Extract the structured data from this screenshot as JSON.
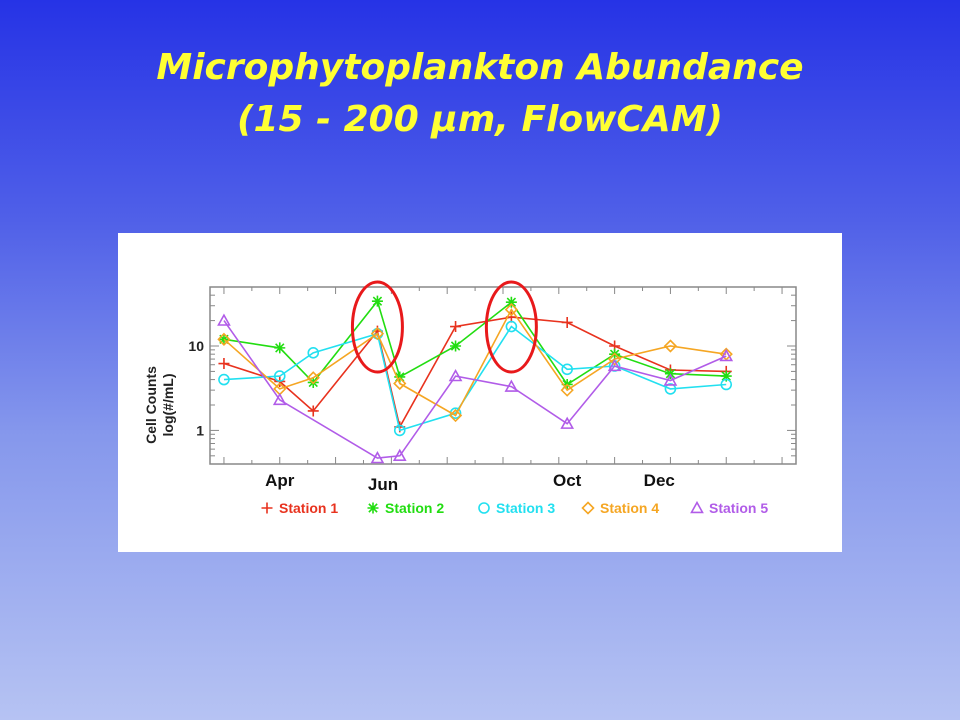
{
  "slide": {
    "title_line1": "Microphytoplankton Abundance",
    "title_line2": "(15 - 200 µm, FlowCAM)",
    "title_color": "#ffff33",
    "background_top": "#2633e6",
    "background_bottom": "#b6c3f3"
  },
  "chart_data": {
    "type": "line",
    "ylabel_line1": "Cell Counts",
    "ylabel_line2": "log(#/mL)",
    "yscale": "log",
    "ylim": [
      0.4,
      50
    ],
    "yticks": [
      {
        "value": 1,
        "label": "1"
      },
      {
        "value": 10,
        "label": "10"
      }
    ],
    "xlim": [
      0.5,
      21.5
    ],
    "month_labels": [
      {
        "label": "Apr",
        "x": 3.0
      },
      {
        "label": "Jun",
        "x": 6.7
      },
      {
        "label": "Oct",
        "x": 13.3
      },
      {
        "label": "Dec",
        "x": 16.6
      }
    ],
    "highlight_x": [
      6.5,
      11.3
    ],
    "highlight_color": "#e8191b",
    "series": [
      {
        "name": "Station 1",
        "color": "#e8321e",
        "marker": "plus",
        "x": [
          1,
          3,
          4.2,
          6.5,
          7.3,
          9.3,
          11.3,
          13.3,
          15,
          17,
          19
        ],
        "y": [
          6.2,
          3.8,
          1.7,
          15,
          1.1,
          17,
          22,
          19,
          10,
          5.2,
          5.0
        ]
      },
      {
        "name": "Station 2",
        "color": "#22dd11",
        "marker": "asterisk",
        "x": [
          1,
          3,
          4.2,
          6.5,
          7.3,
          9.3,
          11.3,
          13.3,
          15,
          17,
          19
        ],
        "y": [
          12,
          9.5,
          3.7,
          34,
          4.3,
          10,
          33,
          3.5,
          8.0,
          4.7,
          4.4
        ]
      },
      {
        "name": "Station 3",
        "color": "#22e0f0",
        "marker": "circle",
        "x": [
          1,
          3,
          4.2,
          6.5,
          7.3,
          9.3,
          11.3,
          13.3,
          15,
          17,
          19
        ],
        "y": [
          4.0,
          4.4,
          8.3,
          14,
          1.0,
          1.6,
          17,
          5.3,
          5.8,
          3.1,
          3.5
        ]
      },
      {
        "name": "Station 4",
        "color": "#f5a623",
        "marker": "diamond",
        "x": [
          1,
          3,
          4.2,
          6.5,
          7.3,
          9.3,
          11.3,
          13.3,
          15,
          17,
          19
        ],
        "y": [
          12,
          3.1,
          4.2,
          14,
          3.6,
          1.5,
          27,
          3.0,
          7.0,
          10,
          8.0
        ]
      },
      {
        "name": "Station 5",
        "color": "#b15ce8",
        "marker": "triangle",
        "x": [
          1,
          3,
          6.5,
          7.3,
          9.3,
          11.3,
          13.3,
          15,
          17,
          19
        ],
        "y": [
          20,
          2.3,
          0.47,
          0.5,
          4.4,
          3.3,
          1.2,
          5.8,
          3.9,
          7.6
        ]
      }
    ]
  }
}
